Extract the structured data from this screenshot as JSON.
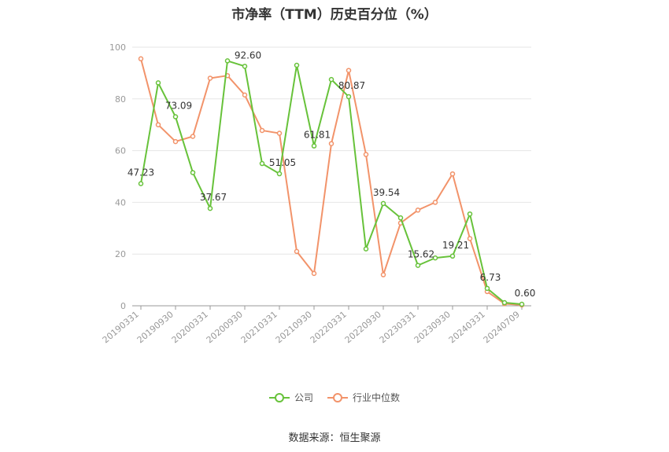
{
  "title": "市净率（TTM）历史百分位（%）",
  "source": "数据来源：恒生聚源",
  "colors": {
    "company": "#67c23a",
    "industry": "#f2936a",
    "grid": "#e6e6e6",
    "axis": "#999999"
  },
  "chart_data": {
    "type": "line",
    "xlabel": "",
    "ylabel": "",
    "ylim": [
      0,
      100
    ],
    "yticks": [
      0,
      20,
      40,
      60,
      80,
      100
    ],
    "grid": true,
    "legend_position": "bottom-center",
    "categories": [
      "20190331",
      "20190630",
      "20190930",
      "20191231",
      "20200331",
      "20200630",
      "20200930",
      "20201231",
      "20210331",
      "20210630",
      "20210930",
      "20211231",
      "20220331",
      "20220630",
      "20220930",
      "20221231",
      "20230331",
      "20230630",
      "20230930",
      "20231231",
      "20240331",
      "20240630",
      "20240709"
    ],
    "tick_labels": [
      "20190331",
      "20190930",
      "20200331",
      "20200930",
      "20210331",
      "20210930",
      "20220331",
      "20220930",
      "20230331",
      "20230930",
      "20240331",
      "20240709"
    ],
    "series": [
      {
        "name": "公司",
        "color": "#67c23a",
        "values": [
          47.23,
          86.2,
          73.09,
          51.5,
          37.67,
          94.7,
          92.6,
          55.0,
          51.05,
          93.0,
          61.81,
          87.5,
          80.87,
          22.0,
          39.54,
          34.0,
          15.62,
          18.5,
          19.21,
          35.5,
          6.73,
          1.2,
          0.6
        ],
        "labels": [
          "47.23",
          null,
          "73.09",
          null,
          "37.67",
          null,
          "92.60",
          null,
          "51.05",
          null,
          "61.81",
          null,
          "80.87",
          null,
          "39.54",
          null,
          "15.62",
          null,
          "19.21",
          null,
          "6.73",
          null,
          "0.60"
        ]
      },
      {
        "name": "行业中位数",
        "color": "#f2936a",
        "values": [
          95.5,
          70.0,
          63.5,
          65.5,
          88.0,
          89.0,
          81.5,
          67.8,
          66.7,
          21.0,
          12.5,
          62.7,
          91.0,
          58.5,
          12.0,
          32.0,
          37.0,
          40.0,
          51.0,
          26.0,
          5.5,
          0.8,
          0.3
        ]
      }
    ]
  }
}
